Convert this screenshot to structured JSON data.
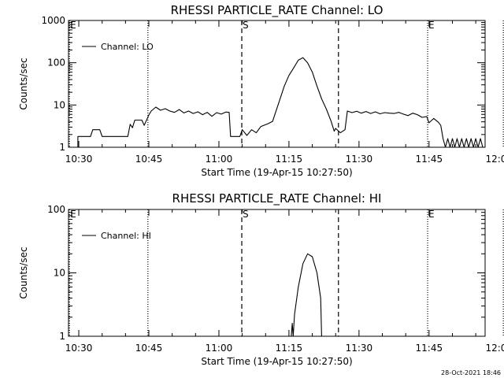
{
  "footer": {
    "timestamp": "28-Oct-2021 18:46"
  },
  "chart_data": [
    {
      "type": "line",
      "title": "RHESSI PARTICLE_RATE Channel: LO",
      "xlabel": "Start Time (19-Apr-15 10:27:50)",
      "ylabel": "Counts/sec",
      "yscale": "log",
      "ylim": [
        1,
        1000
      ],
      "xlim_min": [
        27.8,
        117
      ],
      "x_ticks": [
        {
          "min": 30,
          "label": "10:30"
        },
        {
          "min": 45,
          "label": "10:45"
        },
        {
          "min": 60,
          "label": "11:00"
        },
        {
          "min": 75,
          "label": "11:15"
        },
        {
          "min": 90,
          "label": "11:30"
        },
        {
          "min": 105,
          "label": "11:45"
        },
        {
          "min": 120,
          "label": "12:00"
        }
      ],
      "y_ticks": [
        {
          "value": 1,
          "label": "1"
        },
        {
          "value": 10,
          "label": "10"
        },
        {
          "value": 100,
          "label": "100"
        },
        {
          "value": 1000,
          "label": "1000"
        }
      ],
      "legend": {
        "label": "Channel: LO",
        "position": "top-left"
      },
      "markers": [
        {
          "min": 28.0,
          "style": "dotted",
          "label": "E"
        },
        {
          "min": 44.8,
          "style": "dotted",
          "label": ""
        },
        {
          "min": 64.9,
          "style": "dashed",
          "label": "S"
        },
        {
          "min": 85.6,
          "style": "dashed",
          "label": ""
        },
        {
          "min": 104.7,
          "style": "dotted",
          "label": "E"
        },
        {
          "min": 120.9,
          "style": "dotted",
          "label": ""
        }
      ],
      "series": [
        {
          "name": "Channel: LO",
          "points": [
            [
              29.8,
              1
            ],
            [
              29.8,
              1.8
            ],
            [
              32.5,
              1.8
            ],
            [
              33,
              2.6
            ],
            [
              34.5,
              2.6
            ],
            [
              35,
              1.8
            ],
            [
              40.5,
              1.8
            ],
            [
              41,
              3.5
            ],
            [
              41.5,
              2.9
            ],
            [
              42,
              4.4
            ],
            [
              43.5,
              4.4
            ],
            [
              44,
              3.3
            ],
            [
              45,
              5.8
            ],
            [
              45.5,
              7.2
            ],
            [
              46.5,
              8.9
            ],
            [
              47.5,
              7.5
            ],
            [
              48.5,
              8.2
            ],
            [
              49.5,
              7.2
            ],
            [
              50.5,
              6.7
            ],
            [
              51.5,
              7.8
            ],
            [
              52.5,
              6.5
            ],
            [
              53.5,
              7.2
            ],
            [
              54.5,
              6.3
            ],
            [
              55.5,
              6.9
            ],
            [
              56.5,
              5.9
            ],
            [
              57.5,
              6.7
            ],
            [
              58.5,
              5.4
            ],
            [
              59.5,
              6.6
            ],
            [
              60.5,
              6.1
            ],
            [
              61.5,
              6.8
            ],
            [
              62.2,
              6.7
            ],
            [
              62.5,
              1.8
            ],
            [
              64.5,
              1.8
            ],
            [
              65,
              2.6
            ],
            [
              66,
              1.9
            ],
            [
              67,
              2.6
            ],
            [
              68,
              2.2
            ],
            [
              69,
              3.1
            ],
            [
              70.5,
              3.6
            ],
            [
              71.5,
              4.1
            ],
            [
              72,
              6
            ],
            [
              73,
              13
            ],
            [
              74,
              28
            ],
            [
              75,
              50
            ],
            [
              76,
              75
            ],
            [
              77,
              115
            ],
            [
              78,
              132
            ],
            [
              79,
              100
            ],
            [
              80,
              60
            ],
            [
              81,
              28
            ],
            [
              82,
              14
            ],
            [
              83,
              8
            ],
            [
              84,
              4.2
            ],
            [
              84.7,
              2.4
            ],
            [
              85,
              2.8
            ],
            [
              86,
              2.2
            ],
            [
              87,
              2.6
            ],
            [
              87.5,
              7.2
            ],
            [
              88.5,
              6.6
            ],
            [
              89.5,
              7.1
            ],
            [
              90.5,
              6.4
            ],
            [
              91.5,
              7
            ],
            [
              92.5,
              6.3
            ],
            [
              93.5,
              6.9
            ],
            [
              94.5,
              6.2
            ],
            [
              95.5,
              6.6
            ],
            [
              96.5,
              6.4
            ],
            [
              97.5,
              6.3
            ],
            [
              98.5,
              6.7
            ],
            [
              99.5,
              6.1
            ],
            [
              100.5,
              5.6
            ],
            [
              101.5,
              6.4
            ],
            [
              102.5,
              5.9
            ],
            [
              103.5,
              5.1
            ],
            [
              104.5,
              5.3
            ],
            [
              105,
              3.8
            ],
            [
              106,
              4.8
            ],
            [
              107,
              3.9
            ],
            [
              107.5,
              3.3
            ],
            [
              108,
              1.6
            ],
            [
              108.5,
              1
            ],
            [
              109,
              1.6
            ],
            [
              109.5,
              1
            ],
            [
              110,
              1.6
            ],
            [
              110.5,
              1
            ],
            [
              111,
              1.6
            ],
            [
              111.5,
              1
            ],
            [
              112,
              1.6
            ],
            [
              112.5,
              1
            ],
            [
              113,
              1.6
            ],
            [
              113.5,
              1
            ],
            [
              114,
              1.6
            ],
            [
              114.5,
              1
            ],
            [
              115,
              1.6
            ],
            [
              115.5,
              1
            ],
            [
              116,
              1.6
            ],
            [
              116.5,
              1
            ]
          ]
        }
      ]
    },
    {
      "type": "line",
      "title": "RHESSI PARTICLE_RATE Channel: HI",
      "xlabel": "Start Time (19-Apr-15 10:27:50)",
      "ylabel": "Counts/sec",
      "yscale": "log",
      "ylim": [
        1,
        100
      ],
      "xlim_min": [
        27.8,
        117
      ],
      "x_ticks": [
        {
          "min": 30,
          "label": "10:30"
        },
        {
          "min": 45,
          "label": "10:45"
        },
        {
          "min": 60,
          "label": "11:00"
        },
        {
          "min": 75,
          "label": "11:15"
        },
        {
          "min": 90,
          "label": "11:30"
        },
        {
          "min": 105,
          "label": "11:45"
        },
        {
          "min": 120,
          "label": "12:00"
        }
      ],
      "y_ticks": [
        {
          "value": 1,
          "label": "1"
        },
        {
          "value": 10,
          "label": "10"
        },
        {
          "value": 100,
          "label": "100"
        }
      ],
      "legend": {
        "label": "Channel: HI",
        "position": "top-left"
      },
      "markers": [
        {
          "min": 28.0,
          "style": "dotted",
          "label": "E"
        },
        {
          "min": 44.8,
          "style": "dotted",
          "label": ""
        },
        {
          "min": 64.9,
          "style": "dashed",
          "label": "S"
        },
        {
          "min": 85.6,
          "style": "dashed",
          "label": ""
        },
        {
          "min": 104.7,
          "style": "dotted",
          "label": "E"
        },
        {
          "min": 120.9,
          "style": "dotted",
          "label": ""
        }
      ],
      "series": [
        {
          "name": "Channel: HI",
          "points": [
            [
              75.5,
              1
            ],
            [
              75.7,
              1.6
            ],
            [
              75.9,
              1
            ],
            [
              76.2,
              2.2
            ],
            [
              77,
              6
            ],
            [
              78,
              14
            ],
            [
              79,
              20
            ],
            [
              80,
              18
            ],
            [
              81,
              10
            ],
            [
              81.8,
              4
            ],
            [
              82,
              1
            ]
          ]
        }
      ]
    }
  ]
}
